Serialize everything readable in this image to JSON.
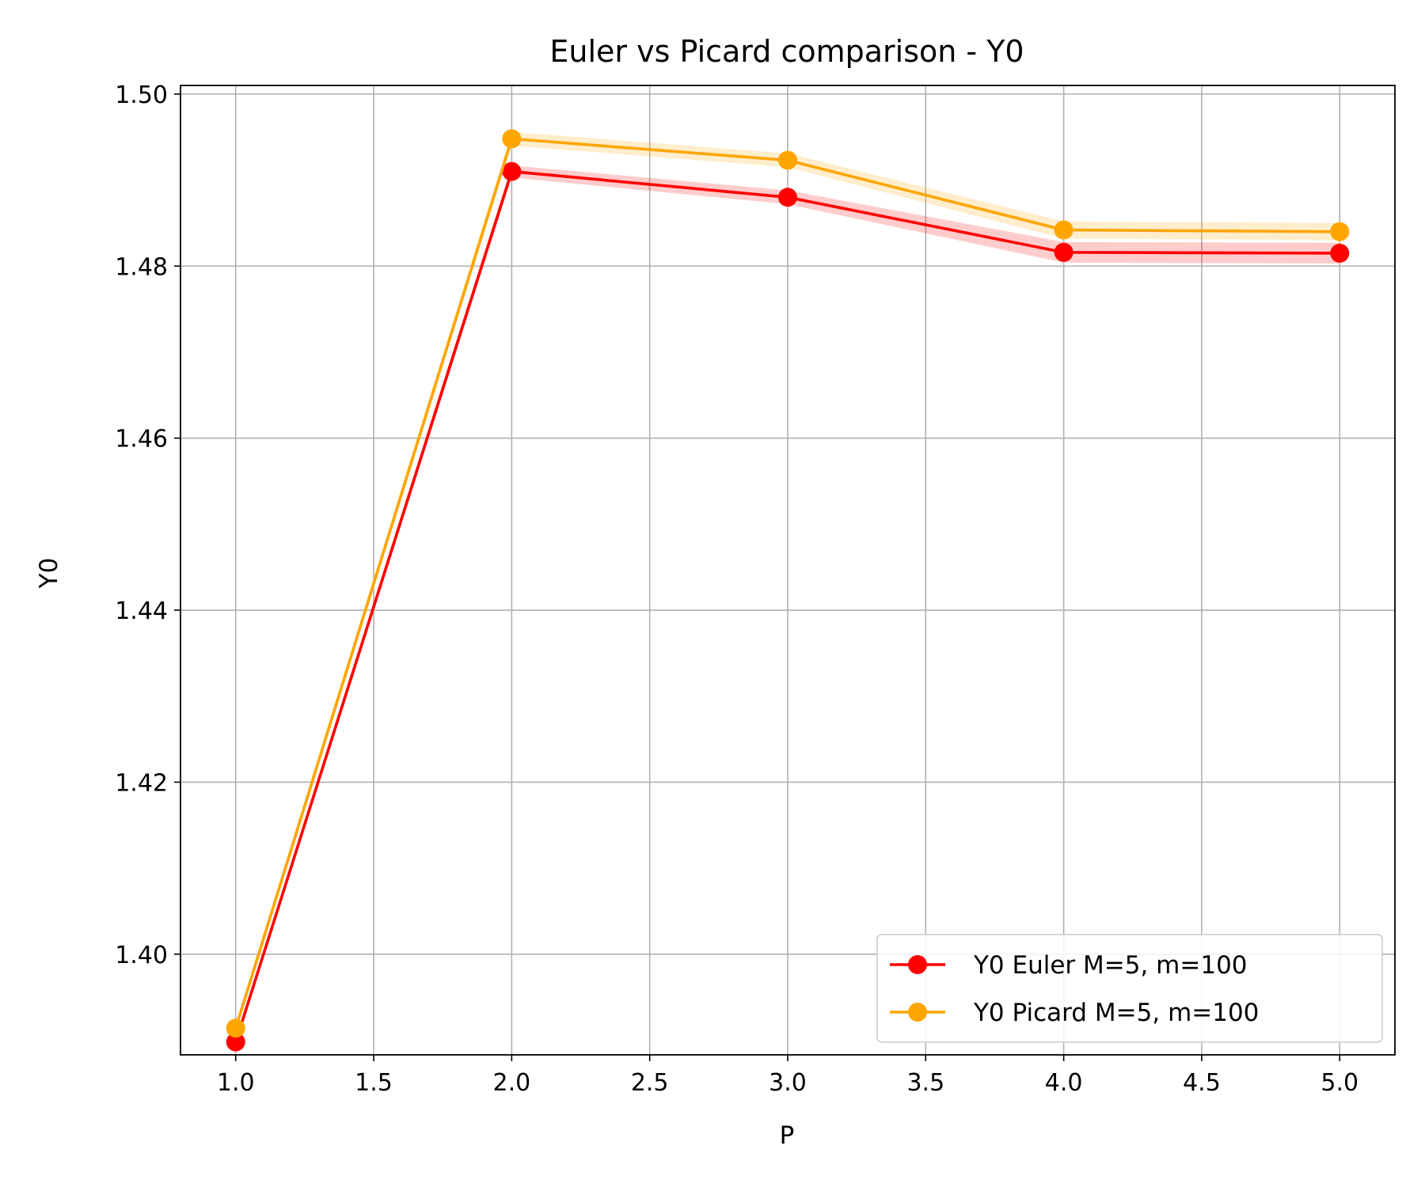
{
  "chart_data": {
    "type": "line",
    "title": "Euler vs Picard comparison - Y0",
    "xlabel": "P",
    "ylabel": "Y0",
    "xlim": [
      0.8,
      5.2
    ],
    "ylim": [
      1.3883,
      1.501
    ],
    "xticks": [
      "1.0",
      "1.5",
      "2.0",
      "2.5",
      "3.0",
      "3.5",
      "4.0",
      "4.5",
      "5.0"
    ],
    "xtick_values": [
      1.0,
      1.5,
      2.0,
      2.5,
      3.0,
      3.5,
      4.0,
      4.5,
      5.0
    ],
    "yticks": [
      "1.40",
      "1.42",
      "1.44",
      "1.46",
      "1.48",
      "1.50"
    ],
    "ytick_values": [
      1.4,
      1.42,
      1.44,
      1.46,
      1.48,
      1.5
    ],
    "grid": true,
    "legend_position": "lower right",
    "x": [
      1,
      2,
      3,
      4,
      5
    ],
    "series": [
      {
        "name": "Y0 Euler M=5, m=100",
        "color": "#ff0000",
        "values": [
          1.3898,
          1.491,
          1.488,
          1.4816,
          1.4815
        ],
        "band_lower": [
          1.3893,
          1.4903,
          1.4872,
          1.4804,
          1.4803
        ],
        "band_upper": [
          1.3903,
          1.4917,
          1.4888,
          1.4828,
          1.4827
        ]
      },
      {
        "name": "Y0 Picard M=5, m=100",
        "color": "#ffa500",
        "values": [
          1.3914,
          1.4948,
          1.4923,
          1.4842,
          1.484
        ],
        "band_lower": [
          1.3909,
          1.494,
          1.4915,
          1.4832,
          1.483
        ],
        "band_upper": [
          1.3919,
          1.4956,
          1.4931,
          1.4852,
          1.485
        ]
      }
    ]
  }
}
